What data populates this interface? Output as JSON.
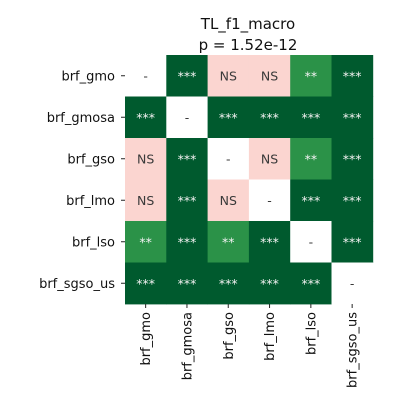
{
  "chart_data": {
    "type": "heatmap",
    "title": "TL_f1_macro",
    "subtitle": "p = 1.52e-12",
    "row_labels": [
      "brf_gmo",
      "brf_gmosa",
      "brf_gso",
      "brf_lmo",
      "brf_lso",
      "brf_sgso_us"
    ],
    "col_labels": [
      "brf_gmo",
      "brf_gmosa",
      "brf_gso",
      "brf_lmo",
      "brf_lso",
      "brf_sgso_us"
    ],
    "cells": [
      [
        "-",
        "***",
        "NS",
        "NS",
        "**",
        "***"
      ],
      [
        "***",
        "-",
        "***",
        "***",
        "***",
        "***"
      ],
      [
        "NS",
        "***",
        "-",
        "NS",
        "**",
        "***"
      ],
      [
        "NS",
        "***",
        "NS",
        "-",
        "***",
        "***"
      ],
      [
        "**",
        "***",
        "**",
        "***",
        "-",
        "***"
      ],
      [
        "***",
        "***",
        "***",
        "***",
        "***",
        "-"
      ]
    ],
    "legend": {
      "***": "#005a2e",
      "**": "#2b9248",
      "NS": "#fbd5d0",
      "-": "#ffffff"
    },
    "text_colors": {
      "***": "#f2f2f2",
      "**": "#f2f2f2",
      "NS": "#3a3a3a",
      "-": "#3a3a3a"
    },
    "grid": false
  }
}
